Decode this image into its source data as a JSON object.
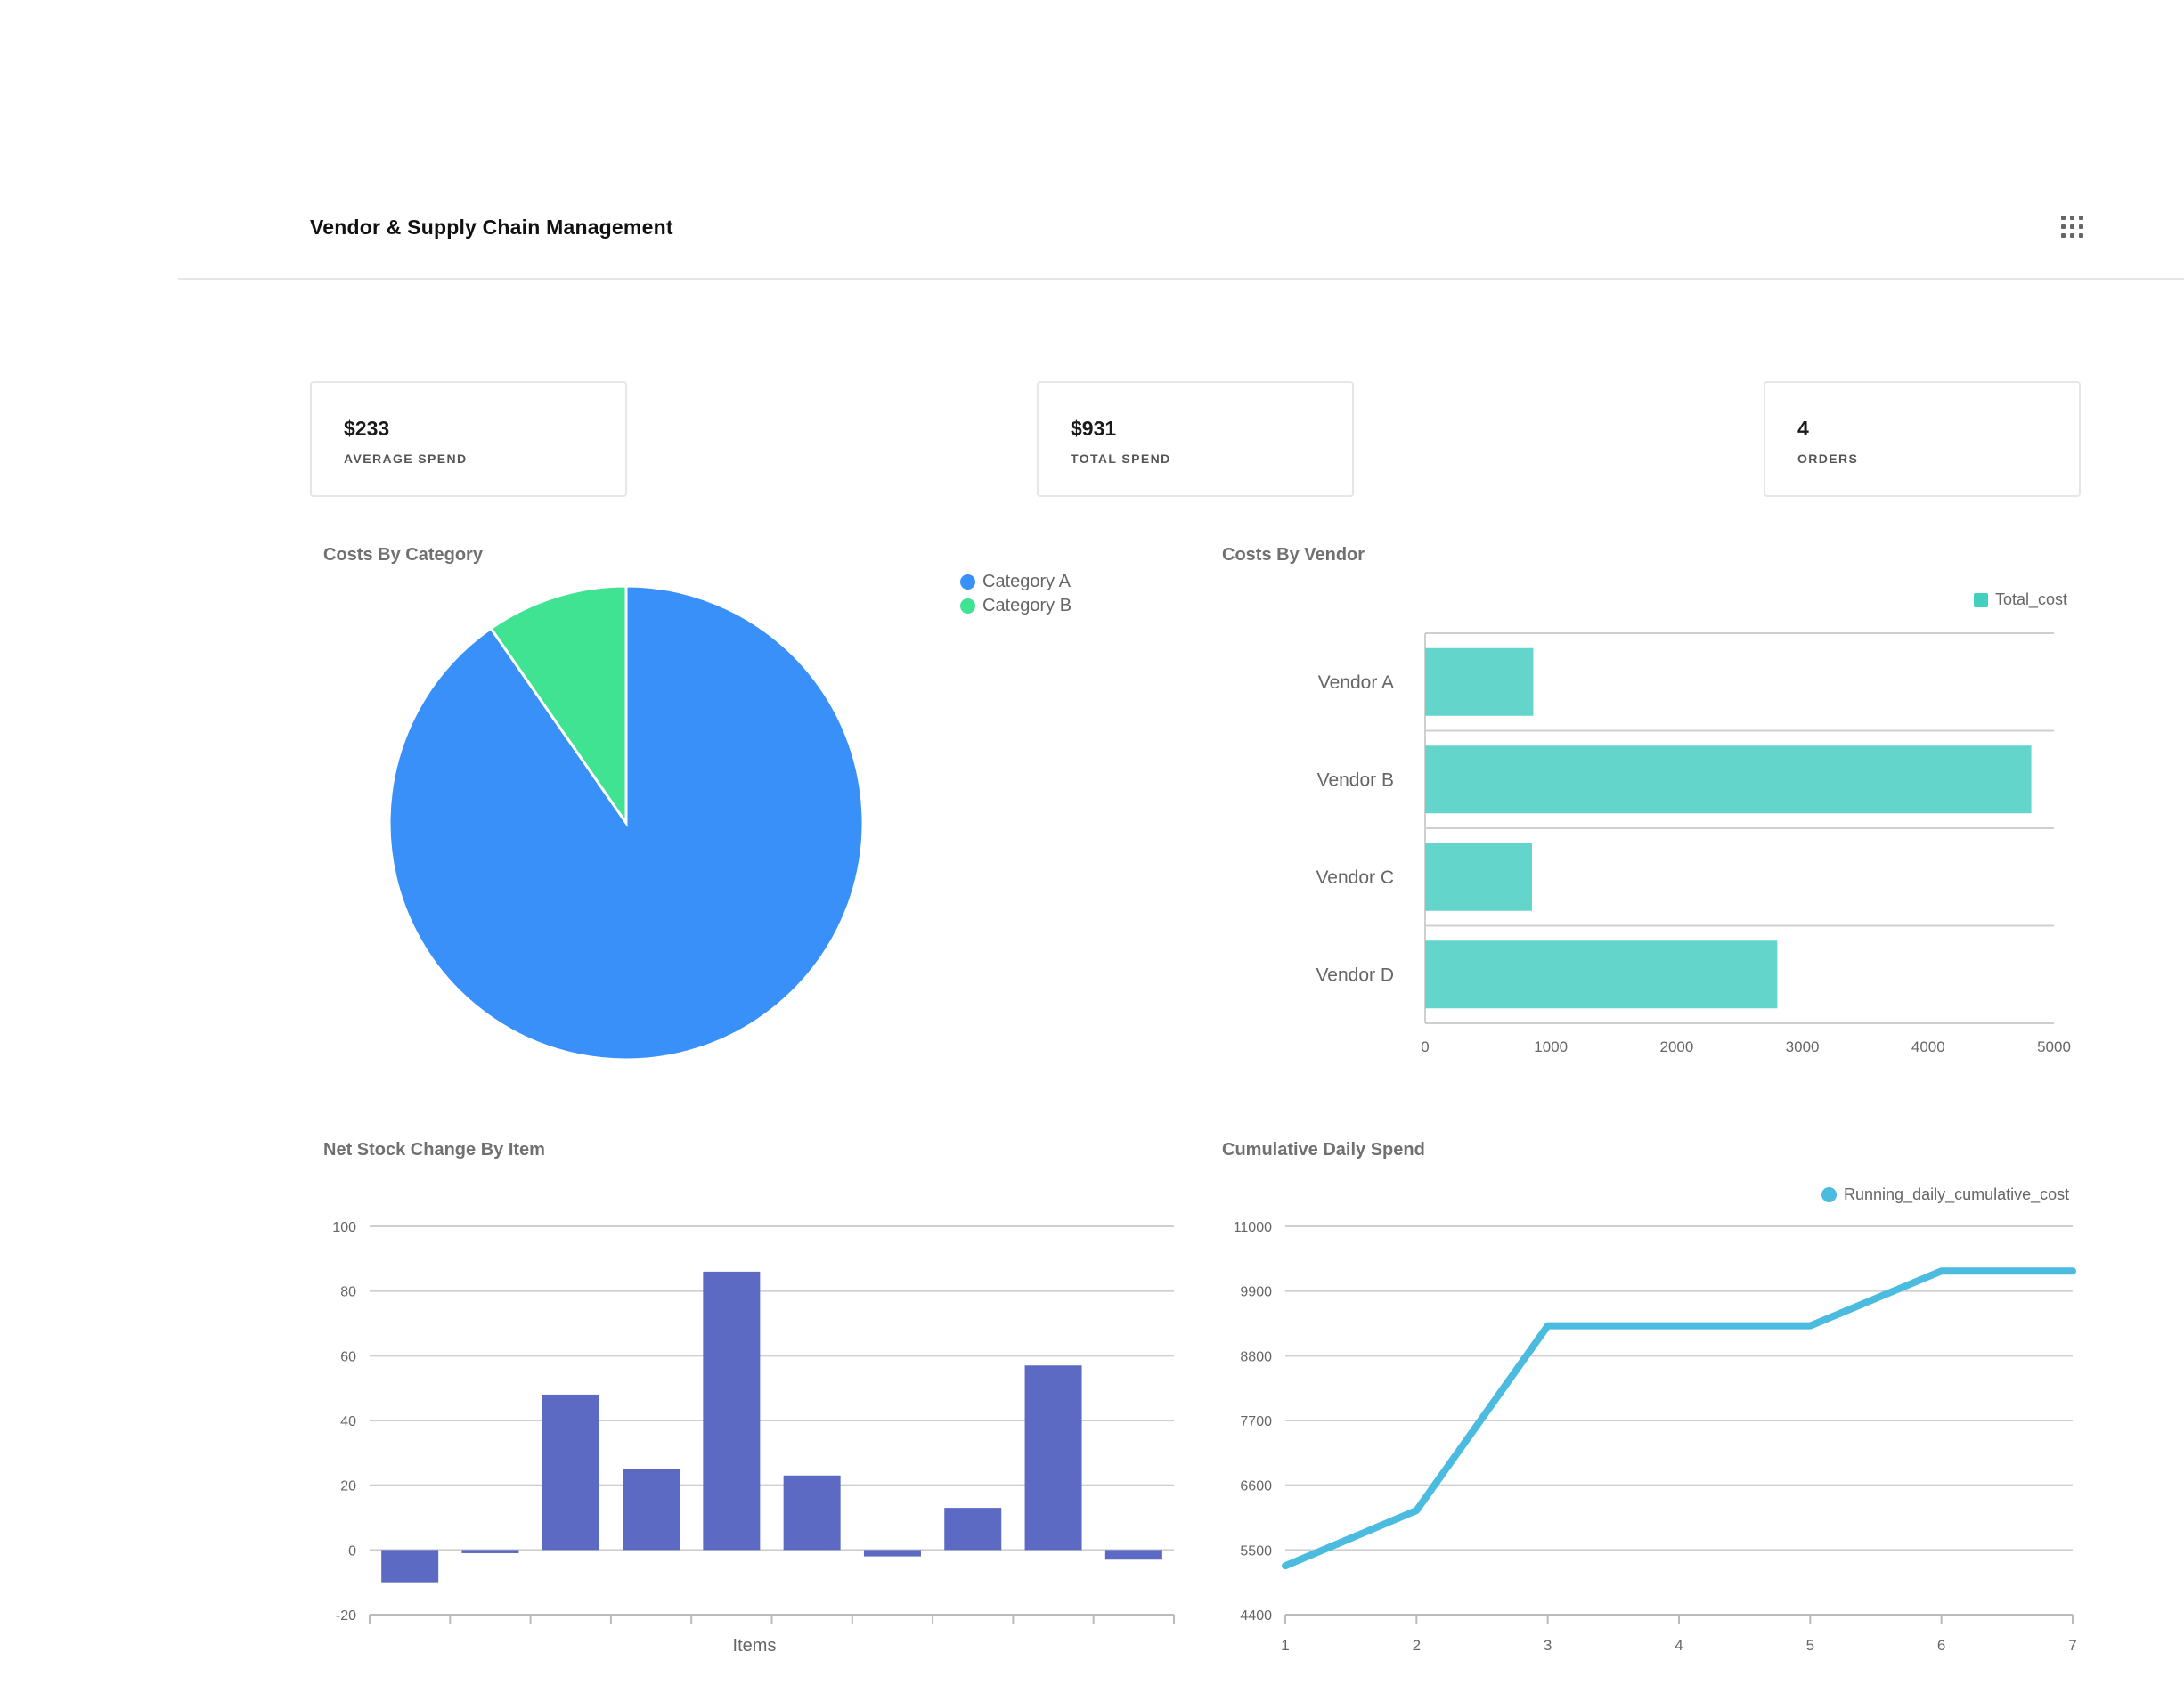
{
  "header": {
    "title": "Vendor & Supply Chain Management",
    "menu_icon": "grid-menu-icon"
  },
  "kpis": [
    {
      "value": "$233",
      "label": "AVERAGE SPEND"
    },
    {
      "value": "$931",
      "label": "TOTAL SPEND"
    },
    {
      "value": "4",
      "label": "ORDERS"
    }
  ],
  "colors": {
    "catA": "#3890f8",
    "catB": "#3fe391",
    "vendor": "#63d5cb",
    "stock": "#5d6ac4",
    "spend": "#4bbbe0"
  },
  "chart_data": [
    {
      "type": "pie",
      "title": "Costs By Category",
      "legend": [
        "Category A",
        "Category B"
      ],
      "values": [
        841,
        90
      ],
      "legend_position": "top-right"
    },
    {
      "type": "bar",
      "orientation": "horizontal",
      "title": "Costs By Vendor",
      "categories": [
        "Vendor A",
        "Vendor B",
        "Vendor C",
        "Vendor D"
      ],
      "values": [
        860,
        4820,
        850,
        2800
      ],
      "series_name": "Total_cost",
      "xticks": [
        "0",
        "1000",
        "2000",
        "3000",
        "4000",
        "5000"
      ],
      "xlim": [
        0,
        5000
      ]
    },
    {
      "type": "bar",
      "title": "Net Stock Change By Item",
      "xlabel": "Items",
      "values": [
        -10,
        -1,
        48,
        25,
        86,
        23,
        -2,
        13,
        57,
        -3
      ],
      "yticks": [
        "100",
        "80",
        "60",
        "40",
        "20",
        "0",
        "-20"
      ],
      "ylim": [
        -20,
        100
      ]
    },
    {
      "type": "line",
      "title": "Cumulative Daily Spend",
      "series_name": "Running_daily_cumulative_cost",
      "x": [
        1,
        2,
        3,
        4,
        5,
        6,
        7
      ],
      "xticks": [
        "1",
        "2",
        "3",
        "4",
        "5",
        "6",
        "7"
      ],
      "values": [
        5230,
        6170,
        9310,
        9310,
        9310,
        10240,
        10240
      ],
      "yticks": [
        "11000",
        "9900",
        "8800",
        "7700",
        "6600",
        "5500",
        "4400"
      ],
      "ylim": [
        4400,
        11000
      ]
    }
  ]
}
